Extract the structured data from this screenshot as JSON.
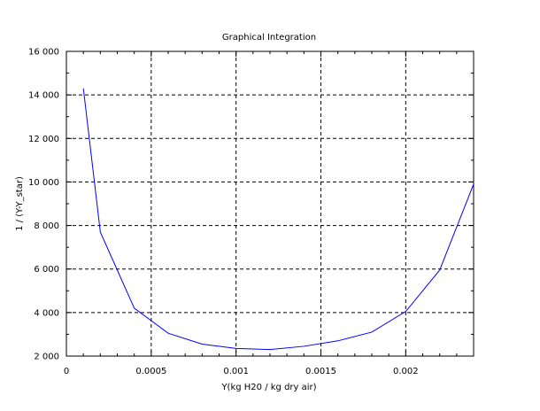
{
  "chart_data": {
    "type": "line",
    "title": "Graphical Integration",
    "xlabel": "Y(kg H20 / kg dry air)",
    "ylabel": "1 / (Y-Y_star)",
    "xlim": [
      0,
      0.0024
    ],
    "ylim": [
      2000,
      16000
    ],
    "grid": true,
    "xticks": [
      0,
      0.0005,
      0.001,
      0.0015,
      0.002
    ],
    "xtick_labels": [
      "0",
      "0.0005",
      "0.001",
      "0.0015",
      "0.002"
    ],
    "yticks": [
      2000,
      4000,
      6000,
      8000,
      10000,
      12000,
      14000,
      16000
    ],
    "ytick_labels": [
      "2 000",
      "4 000",
      "6 000",
      "8 000",
      "10 000",
      "12 000",
      "14 000",
      "16 000"
    ],
    "series": [
      {
        "color": "#0000ff",
        "x": [
          0.0001,
          0.0002,
          0.0004,
          0.0006,
          0.0008,
          0.001,
          0.0012,
          0.0014,
          0.0016,
          0.0018,
          0.002,
          0.0022,
          0.0024
        ],
        "y": [
          14300,
          7700,
          4200,
          3050,
          2550,
          2350,
          2300,
          2450,
          2700,
          3100,
          4050,
          5950,
          9900
        ]
      }
    ]
  }
}
